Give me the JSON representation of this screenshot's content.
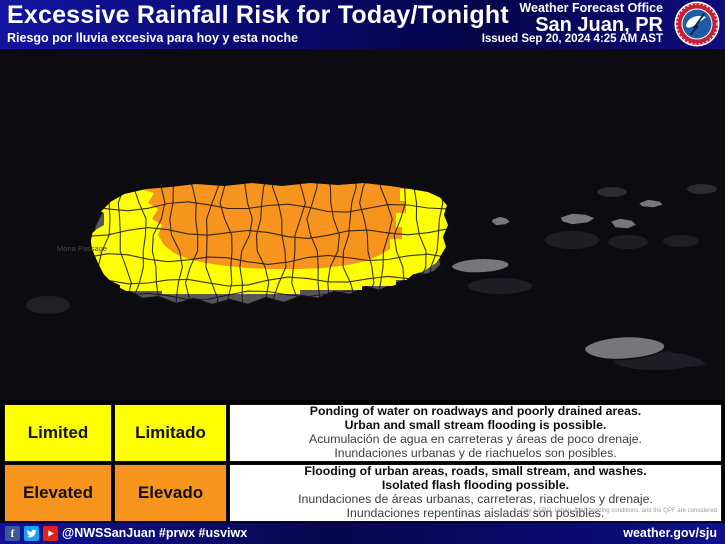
{
  "header": {
    "title": "Excessive Rainfall Risk for Today/Tonight",
    "subtitle": "Riesgo por lluvia excesiva para hoy y esta noche",
    "office_label": "Weather Forecast Office",
    "office_name": "San Juan, PR",
    "issued": "Issued Sep 20, 2024 4:25 AM AST"
  },
  "map": {
    "label_mona_passage": "Mona Passage",
    "risk_depicted": {
      "elevated": "central and northern Puerto Rico municipalities",
      "limited": "western, eastern and south-central band around the elevated area",
      "none": "southern coastal municipalities, Vieques, Culebra and U.S. Virgin Islands"
    }
  },
  "colors": {
    "limited": "#feff00",
    "elevated": "#f7941e",
    "none_gray": "#55555a",
    "island_gray": "#76767b",
    "map_bg": "#0b0b10"
  },
  "legend": {
    "rows": [
      {
        "label_en": "Limited",
        "label_es": "Limitado",
        "color": "#feff00",
        "desc_bold_1": "Ponding of water on roadways and poorly drained areas.",
        "desc_bold_2": "Urban and small stream flooding is possible.",
        "desc_es_1": "Acumulación de agua en carreteras y áreas de poco drenaje.",
        "desc_es_2": "Inundaciones urbanas y de riachuelos son posibles."
      },
      {
        "label_en": "Elevated",
        "label_es": "Elevado",
        "color": "#f7941e",
        "desc_bold_1": "Flooding of urban areas, roads, small stream, and washes.",
        "desc_bold_2": "Isolated flash flooding possible.",
        "desc_es_1": "Inundaciones de áreas urbanas, carreteras, riachuelos y drenaje.",
        "desc_es_2": "Inundaciones repentinas aisladas son posibles."
      }
    ],
    "fine_print": "Day 1 ERO. Urban, flash flooding conditions, and the QPF are considered"
  },
  "footer": {
    "social_icons": [
      "facebook-icon",
      "twitter-icon",
      "youtube-icon"
    ],
    "handle": "@NWSSanJuan #prwx #usviwx",
    "url": "weather.gov/sju"
  }
}
